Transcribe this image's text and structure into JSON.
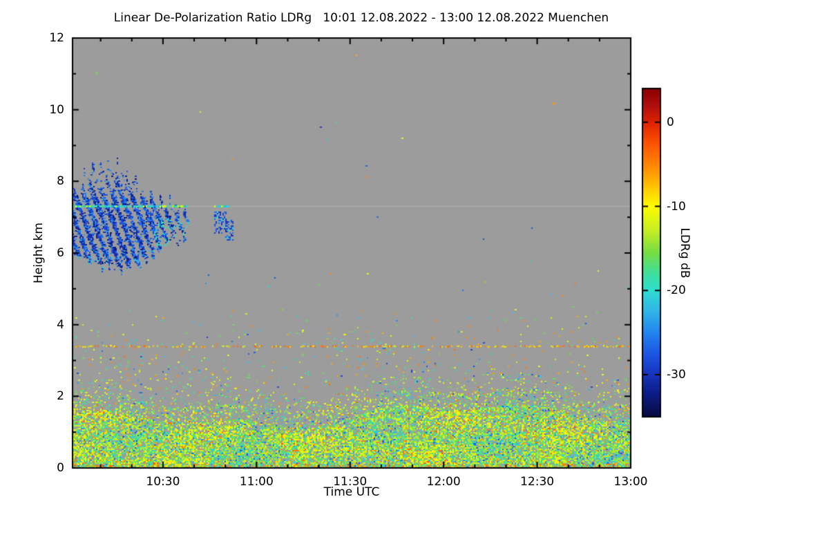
{
  "chart_data": {
    "type": "heatmap",
    "title": "Linear De-Polarization Ratio LDRg   10:01 12.08.2022 - 13:00 12.08.2022 Muenchen",
    "xlabel": "Time UTC",
    "ylabel": "Height km",
    "x_axis": {
      "start_label": "10:01",
      "end_label": "13:00",
      "range_minutes": [
        0,
        179
      ],
      "ticks": [
        {
          "label": "10:30",
          "minute": 29
        },
        {
          "label": "11:00",
          "minute": 59
        },
        {
          "label": "11:30",
          "minute": 89
        },
        {
          "label": "12:00",
          "minute": 119
        },
        {
          "label": "12:30",
          "minute": 149
        },
        {
          "label": "13:00",
          "minute": 179
        }
      ],
      "minor_tick_minutes": [
        9,
        19,
        39,
        49,
        69,
        79,
        99,
        109,
        129,
        139,
        159,
        169
      ]
    },
    "y_axis": {
      "range_km": [
        0,
        12
      ],
      "ticks": [
        0,
        2,
        4,
        6,
        8,
        10,
        12
      ],
      "minor_ticks": [
        1,
        3,
        5,
        7,
        9,
        11
      ]
    },
    "colorbar": {
      "label": "LDRg dB",
      "ticks": [
        0,
        -10,
        -20,
        -30
      ],
      "range_db": [
        4,
        -35
      ],
      "stops": [
        [
          0.0,
          "#8b0000"
        ],
        [
          0.055,
          "#b31010"
        ],
        [
          0.103,
          "#dd2200"
        ],
        [
          0.17,
          "#ff5500"
        ],
        [
          0.235,
          "#ff8800"
        ],
        [
          0.3,
          "#ffc400"
        ],
        [
          0.359,
          "#fdfd00"
        ],
        [
          0.43,
          "#c8ee22"
        ],
        [
          0.5,
          "#77dd44"
        ],
        [
          0.565,
          "#3ddf9d"
        ],
        [
          0.615,
          "#2fdcd0"
        ],
        [
          0.68,
          "#2fb4e8"
        ],
        [
          0.75,
          "#2380ee"
        ],
        [
          0.815,
          "#1b52e0"
        ],
        [
          0.872,
          "#1733bb"
        ],
        [
          0.93,
          "#0c1d87"
        ],
        [
          1.0,
          "#070b3f"
        ]
      ]
    },
    "no_data_color": "#9c9c9c",
    "features": {
      "ice_cloud": {
        "description": "Dense ice cloud with slanted fall streaks, strongly negative LDR (blue), 10:01-10:38 UTC",
        "time_minutes": [
          0,
          37
        ],
        "top_km": {
          "t": [
            0,
            3,
            6,
            9,
            12,
            15,
            18,
            21,
            24,
            27,
            30,
            33,
            35,
            37
          ],
          "v": [
            7.8,
            8.0,
            8.25,
            8.45,
            8.3,
            8.4,
            8.15,
            7.8,
            7.55,
            7.4,
            7.3,
            7.25,
            7.15,
            6.85
          ]
        },
        "base_km": {
          "t": [
            0,
            3,
            6,
            9,
            12,
            15,
            18,
            21,
            24,
            27,
            30,
            33,
            35,
            37
          ],
          "v": [
            5.85,
            5.8,
            5.7,
            5.62,
            5.58,
            5.52,
            5.5,
            5.58,
            5.85,
            6.05,
            6.2,
            6.3,
            6.35,
            6.5
          ]
        },
        "value_db_range": [
          -33,
          -24
        ],
        "fringe_value_db": -19
      },
      "cloud_patches": [
        {
          "time_minutes": [
            45.5,
            49.0
          ],
          "height_km": [
            6.55,
            7.15
          ]
        },
        {
          "time_minutes": [
            49.0,
            51.5
          ],
          "height_km": [
            6.35,
            6.95
          ]
        }
      ],
      "specular_line": {
        "height_km": 7.32,
        "segments_minutes": [
          [
            0,
            36.5
          ],
          [
            45.5,
            50
          ]
        ],
        "values_db": [
          -20,
          -17,
          -22,
          -12
        ]
      },
      "aerosol_band": {
        "height_km": 3.4,
        "coverage": 0.5,
        "values_db": [
          -3,
          -7,
          -11
        ]
      },
      "boundary_layer": {
        "dense_top_km": 1.5,
        "scatter_top_km": 2.3,
        "typical_values_db": [
          -11,
          -15,
          -19
        ],
        "rare_values_db": [
          -4,
          -25
        ]
      },
      "mid_level_scatter": {
        "height_km": [
          2.2,
          4.45
        ],
        "density": 0.03
      },
      "spots": [
        {
          "minute": 7.5,
          "height_km": 11.05,
          "value_db": -16
        },
        {
          "minute": 154,
          "height_km": 10.2,
          "value_db": -6
        }
      ]
    }
  }
}
